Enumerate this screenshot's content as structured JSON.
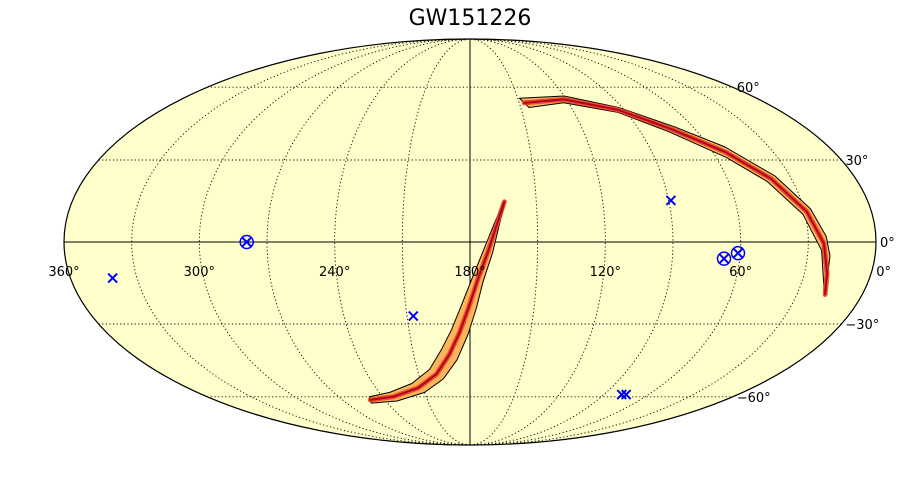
{
  "chart_data": {
    "type": "sky-map",
    "title": "GW151226",
    "projection": "Mollweide",
    "grid": true,
    "x_tick_labels": [
      "360°",
      "300°",
      "240°",
      "180°",
      "120°",
      "60°",
      "0°"
    ],
    "y_tick_labels": [
      "60°",
      "30°",
      "0°",
      "−30°",
      "−60°"
    ],
    "x_ticks": [
      360,
      300,
      240,
      180,
      120,
      60,
      0
    ],
    "y_ticks": [
      60,
      30,
      0,
      -30,
      -60
    ],
    "probability_regions": [
      {
        "name": "",
        "path": [
          [
            164,
            15
          ],
          [
            167,
            6
          ],
          [
            170,
            -4
          ],
          [
            174,
            -14
          ],
          [
            177,
            -24
          ],
          [
            181,
            -34
          ],
          [
            187,
            -44
          ],
          [
            196,
            -52
          ],
          [
            210,
            -58
          ],
          [
            232,
            -62
          ],
          [
            252,
            -63
          ],
          [
            249,
            -60
          ],
          [
            233,
            -58
          ],
          [
            216,
            -54
          ],
          [
            203,
            -48
          ],
          [
            195,
            -40
          ],
          [
            189,
            -32
          ],
          [
            184,
            -23
          ],
          [
            179,
            -13
          ],
          [
            174,
            -3
          ],
          [
            169,
            7
          ],
          [
            165,
            14
          ]
        ]
      },
      {
        "name": "",
        "path": [
          [
            149,
            55
          ],
          [
            120,
            56
          ],
          [
            92,
            51
          ],
          [
            70,
            43
          ],
          [
            52,
            35
          ],
          [
            37,
            24
          ],
          [
            27,
            12
          ],
          [
            22,
            2
          ],
          [
            20,
            -5
          ],
          [
            17,
            -19
          ],
          [
            18,
            -18
          ],
          [
            24,
            -3
          ],
          [
            31,
            10
          ],
          [
            42,
            22
          ],
          [
            55,
            31
          ],
          [
            75,
            41
          ],
          [
            95,
            49
          ],
          [
            123,
            53
          ],
          [
            145,
            51
          ]
        ]
      }
    ],
    "markers": [
      {
        "shape": "x",
        "ra": 341,
        "dec": -13
      },
      {
        "shape": "circle-x",
        "ra": 279,
        "dec": 0
      },
      {
        "shape": "x",
        "ra": 207,
        "dec": -27
      },
      {
        "shape": "x",
        "ra": 89,
        "dec": 15
      },
      {
        "shape": "circle-x",
        "ra": 61,
        "dec": -4
      },
      {
        "shape": "circle-x",
        "ra": 67,
        "dec": -6
      },
      {
        "shape": "x",
        "ra": 75,
        "dec": -59
      },
      {
        "shape": "x",
        "ra": 78,
        "dec": -59
      }
    ],
    "colors": {
      "background": "#ffffcc",
      "region_outer": "#fdb45b",
      "region_mid": "#e8401c",
      "region_core": "#b10026",
      "marker": "#0000ff",
      "grid": "#000000"
    }
  }
}
